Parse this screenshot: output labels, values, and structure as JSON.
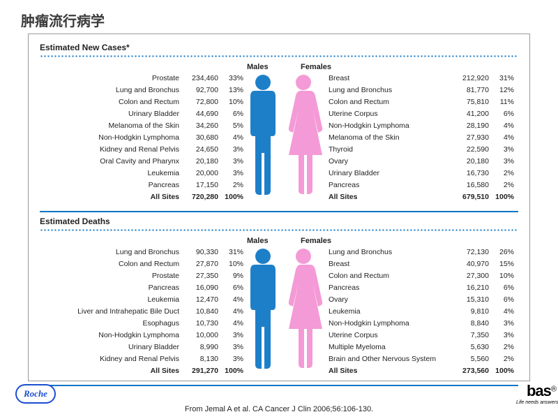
{
  "title": "肿瘤流行病学",
  "citation": "From Jemal A et al. CA Cancer J Clin 2006;56:106-130.",
  "colors": {
    "accent": "#0b74c4",
    "male": "#1e7fc9",
    "female": "#f49ad6",
    "text": "#222222",
    "card_border": "#999999",
    "background": "#ffffff"
  },
  "logos": {
    "roche": "Roche",
    "cobas_fragment": "bas",
    "cobas_reg": "®",
    "cobas_tag": "Life needs answers"
  },
  "sections": [
    {
      "heading": "Estimated New Cases*",
      "male_label": "Males",
      "female_label": "Females",
      "males": [
        {
          "site": "Prostate",
          "count": "234,460",
          "pct": "33%"
        },
        {
          "site": "Lung and Bronchus",
          "count": "92,700",
          "pct": "13%"
        },
        {
          "site": "Colon and Rectum",
          "count": "72,800",
          "pct": "10%"
        },
        {
          "site": "Urinary Bladder",
          "count": "44,690",
          "pct": "6%"
        },
        {
          "site": "Melanoma of the Skin",
          "count": "34,260",
          "pct": "5%"
        },
        {
          "site": "Non-Hodgkin Lymphoma",
          "count": "30,680",
          "pct": "4%"
        },
        {
          "site": "Kidney and Renal Pelvis",
          "count": "24,650",
          "pct": "3%"
        },
        {
          "site": "Oral Cavity and Pharynx",
          "count": "20,180",
          "pct": "3%"
        },
        {
          "site": "Leukemia",
          "count": "20,000",
          "pct": "3%"
        },
        {
          "site": "Pancreas",
          "count": "17,150",
          "pct": "2%"
        }
      ],
      "males_total": {
        "site": "All Sites",
        "count": "720,280",
        "pct": "100%"
      },
      "females": [
        {
          "site": "Breast",
          "count": "212,920",
          "pct": "31%"
        },
        {
          "site": "Lung and Bronchus",
          "count": "81,770",
          "pct": "12%"
        },
        {
          "site": "Colon and Rectum",
          "count": "75,810",
          "pct": "11%"
        },
        {
          "site": "Uterine Corpus",
          "count": "41,200",
          "pct": "6%"
        },
        {
          "site": "Non-Hodgkin Lymphoma",
          "count": "28,190",
          "pct": "4%"
        },
        {
          "site": "Melanoma of the Skin",
          "count": "27,930",
          "pct": "4%"
        },
        {
          "site": "Thyroid",
          "count": "22,590",
          "pct": "3%"
        },
        {
          "site": "Ovary",
          "count": "20,180",
          "pct": "3%"
        },
        {
          "site": "Urinary Bladder",
          "count": "16,730",
          "pct": "2%"
        },
        {
          "site": "Pancreas",
          "count": "16,580",
          "pct": "2%"
        }
      ],
      "females_total": {
        "site": "All Sites",
        "count": "679,510",
        "pct": "100%"
      }
    },
    {
      "heading": "Estimated Deaths",
      "male_label": "Males",
      "female_label": "Females",
      "males": [
        {
          "site": "Lung and Bronchus",
          "count": "90,330",
          "pct": "31%"
        },
        {
          "site": "Colon and Rectum",
          "count": "27,870",
          "pct": "10%"
        },
        {
          "site": "Prostate",
          "count": "27,350",
          "pct": "9%"
        },
        {
          "site": "Pancreas",
          "count": "16,090",
          "pct": "6%"
        },
        {
          "site": "Leukemia",
          "count": "12,470",
          "pct": "4%"
        },
        {
          "site": "Liver and Intrahepatic Bile Duct",
          "count": "10,840",
          "pct": "4%"
        },
        {
          "site": "Esophagus",
          "count": "10,730",
          "pct": "4%"
        },
        {
          "site": "Non-Hodgkin Lymphoma",
          "count": "10,000",
          "pct": "3%"
        },
        {
          "site": "Urinary Bladder",
          "count": "8,990",
          "pct": "3%"
        },
        {
          "site": "Kidney and Renal Pelvis",
          "count": "8,130",
          "pct": "3%"
        }
      ],
      "males_total": {
        "site": "All Sites",
        "count": "291,270",
        "pct": "100%"
      },
      "females": [
        {
          "site": "Lung and Bronchus",
          "count": "72,130",
          "pct": "26%"
        },
        {
          "site": "Breast",
          "count": "40,970",
          "pct": "15%"
        },
        {
          "site": "Colon and Rectum",
          "count": "27,300",
          "pct": "10%"
        },
        {
          "site": "Pancreas",
          "count": "16,210",
          "pct": "6%"
        },
        {
          "site": "Ovary",
          "count": "15,310",
          "pct": "6%"
        },
        {
          "site": "Leukemia",
          "count": "9,810",
          "pct": "4%"
        },
        {
          "site": "Non-Hodgkin Lymphoma",
          "count": "8,840",
          "pct": "3%"
        },
        {
          "site": "Uterine Corpus",
          "count": "7,350",
          "pct": "3%"
        },
        {
          "site": "Multiple Myeloma",
          "count": "5,630",
          "pct": "2%"
        },
        {
          "site": "Brain and Other Nervous System",
          "count": "5,560",
          "pct": "2%"
        }
      ],
      "females_total": {
        "site": "All Sites",
        "count": "273,560",
        "pct": "100%"
      }
    }
  ]
}
